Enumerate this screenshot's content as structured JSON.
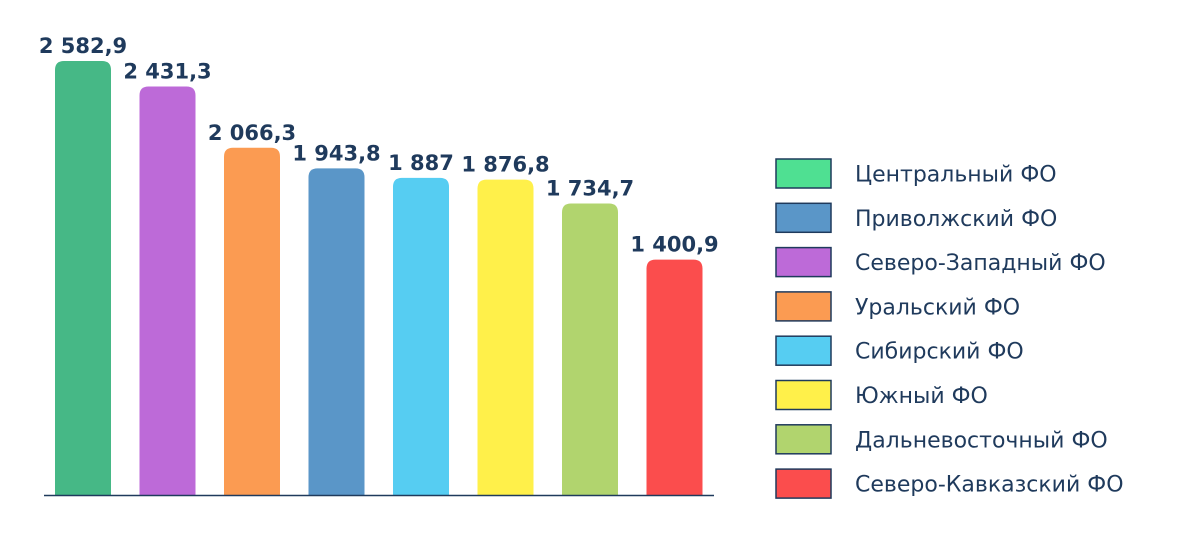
{
  "chart_data": {
    "type": "bar",
    "categories": [
      "Центральный ФО",
      "Северо-Западный ФО",
      "Уральский ФО",
      "Приволжский ФО",
      "Сибирский ФО",
      "Южный ФО",
      "Дальневосточный ФО",
      "Северо-Кавказский ФО"
    ],
    "values": [
      2582.9,
      2431.3,
      2066.3,
      1943.8,
      1887,
      1876.8,
      1734.7,
      1400.9
    ],
    "value_labels": [
      "2 582,9",
      "2 431,3",
      "2 066,3",
      "1 943,8",
      "1 887",
      "1 876,8",
      "1 734,7",
      "1 400,9"
    ],
    "colors": [
      "#46b886",
      "#bd6ad8",
      "#fb9b52",
      "#5a96c8",
      "#56cdf2",
      "#fff04a",
      "#b1d46e",
      "#fb4d4d"
    ],
    "ylim": [
      0,
      2582.9
    ],
    "grid": false,
    "title": "",
    "xlabel": "",
    "ylabel": "",
    "legend": {
      "placement": "right",
      "entries": [
        {
          "label": "Центральный ФО",
          "color": "#4fe092"
        },
        {
          "label": "Приволжский ФО",
          "color": "#5a96c8"
        },
        {
          "label": "Северо-Западный ФО",
          "color": "#bd6ad8"
        },
        {
          "label": "Уральский ФО",
          "color": "#fb9b52"
        },
        {
          "label": "Сибирский ФО",
          "color": "#56cdf2"
        },
        {
          "label": "Южный ФО",
          "color": "#fff04a"
        },
        {
          "label": "Дальневосточный ФО",
          "color": "#b1d46e"
        },
        {
          "label": "Северо-Кавказский ФО",
          "color": "#fb4d4d"
        }
      ]
    }
  },
  "axis_color": "#1f3a5c",
  "text_color": "#1f3a5c"
}
